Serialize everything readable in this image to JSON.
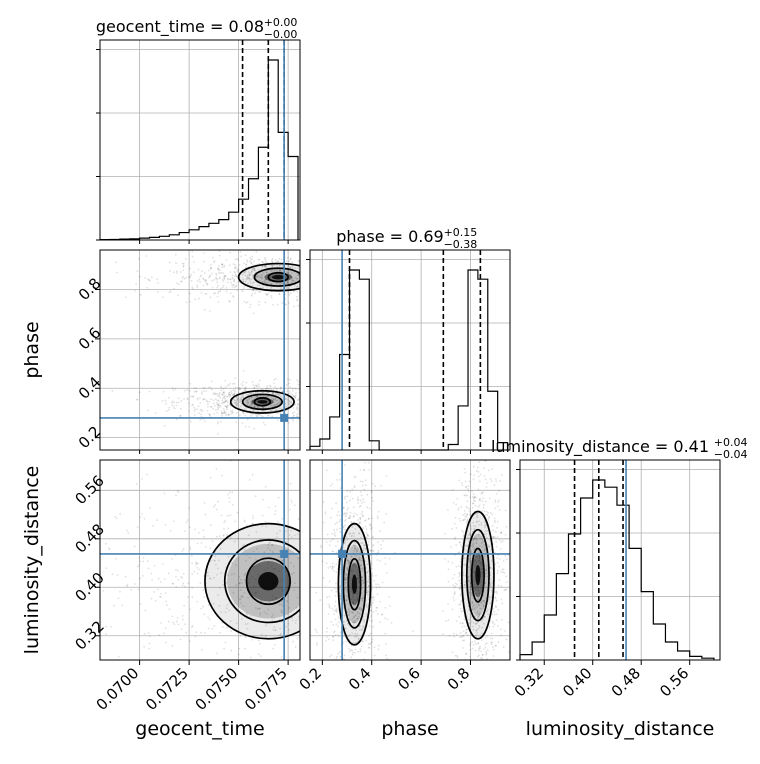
{
  "chart_data": {
    "type": "corner",
    "parameters": [
      "geocent_time",
      "phase",
      "luminosity_distance"
    ],
    "truth": {
      "geocent_time": 0.0773,
      "phase": 0.28,
      "luminosity_distance": 0.455
    },
    "titles": [
      {
        "param": "geocent_time",
        "lhs": "geocent_time = 0.08",
        "sup": "+0.00",
        "sub": "−0.00"
      },
      {
        "param": "phase",
        "lhs": "phase = 0.69",
        "sup": "+0.15",
        "sub": "−0.38"
      },
      {
        "param": "luminosity_distance",
        "lhs": "luminosity_distance = 0.41",
        "sup": "+0.04",
        "sub": "−0.04"
      }
    ],
    "ranges": {
      "geocent_time": [
        0.068,
        0.0781
      ],
      "phase": [
        0.15,
        0.96
      ],
      "luminosity_distance": [
        0.28,
        0.61
      ]
    },
    "ticks": {
      "geocent_time": {
        "values": [
          0.07,
          0.0725,
          0.075,
          0.0775
        ],
        "labels": [
          "0.0700",
          "0.0725",
          "0.0750",
          "0.0775"
        ]
      },
      "phase": {
        "values": [
          0.2,
          0.4,
          0.6,
          0.8
        ],
        "labels": [
          "0.2",
          "0.4",
          "0.6",
          "0.8"
        ]
      },
      "luminosity_distance": {
        "values": [
          0.32,
          0.4,
          0.48,
          0.56
        ],
        "labels": [
          "0.32",
          "0.40",
          "0.48",
          "0.56"
        ]
      }
    },
    "quantiles": {
      "geocent_time": [
        0.0752,
        0.0765,
        0.0773
      ],
      "phase": [
        0.31,
        0.69,
        0.84
      ],
      "luminosity_distance": [
        0.37,
        0.41,
        0.45
      ]
    },
    "histograms": {
      "geocent_time": {
        "edges": [
          0.068,
          0.0685,
          0.069,
          0.0695,
          0.07,
          0.0705,
          0.071,
          0.0715,
          0.072,
          0.0725,
          0.073,
          0.0735,
          0.074,
          0.0745,
          0.075,
          0.0755,
          0.076,
          0.0765,
          0.077,
          0.0775,
          0.078
        ],
        "counts": [
          0.002,
          0.003,
          0.005,
          0.006,
          0.01,
          0.014,
          0.02,
          0.028,
          0.04,
          0.055,
          0.072,
          0.09,
          0.11,
          0.15,
          0.22,
          0.33,
          0.5,
          0.97,
          0.58,
          0.45
        ]
      },
      "phase": {
        "edges": [
          0.15,
          0.19,
          0.23,
          0.27,
          0.31,
          0.35,
          0.39,
          0.43,
          0.47,
          0.51,
          0.55,
          0.59,
          0.63,
          0.67,
          0.71,
          0.75,
          0.79,
          0.83,
          0.87,
          0.91,
          0.95
        ],
        "counts": [
          0.02,
          0.06,
          0.18,
          0.52,
          0.98,
          0.93,
          0.05,
          0,
          0,
          0,
          0,
          0,
          0,
          0,
          0.03,
          0.24,
          0.98,
          0.93,
          0.32,
          0.04
        ]
      },
      "luminosity_distance": {
        "edges": [
          0.28,
          0.3,
          0.32,
          0.34,
          0.36,
          0.38,
          0.4,
          0.42,
          0.44,
          0.46,
          0.48,
          0.5,
          0.52,
          0.54,
          0.56,
          0.58,
          0.6
        ],
        "counts": [
          0.03,
          0.1,
          0.25,
          0.48,
          0.7,
          0.9,
          1.0,
          0.96,
          0.86,
          0.62,
          0.38,
          0.2,
          0.1,
          0.05,
          0.02,
          0.01
        ]
      }
    },
    "contours": [
      {
        "x": "geocent_time",
        "y": "phase",
        "centers": [
          {
            "x": 0.0762,
            "y": 0.345,
            "levels": [
              [
                0.0016,
                0.045
              ],
              [
                0.001,
                0.03
              ],
              [
                0.0004,
                0.016
              ]
            ]
          },
          {
            "x": 0.077,
            "y": 0.85,
            "levels": [
              [
                0.002,
                0.055
              ],
              [
                0.0012,
                0.036
              ],
              [
                0.0005,
                0.018
              ]
            ]
          }
        ]
      },
      {
        "x": "geocent_time",
        "y": "luminosity_distance",
        "centers": [
          {
            "x": 0.0765,
            "y": 0.41,
            "levels": [
              [
                0.0032,
                0.095
              ],
              [
                0.0022,
                0.068
              ],
              [
                0.0011,
                0.038
              ]
            ]
          }
        ]
      },
      {
        "x": "phase",
        "y": "luminosity_distance",
        "centers": [
          {
            "x": 0.33,
            "y": 0.405,
            "levels": [
              [
                0.065,
                0.1
              ],
              [
                0.045,
                0.072
              ],
              [
                0.025,
                0.042
              ]
            ]
          },
          {
            "x": 0.83,
            "y": 0.42,
            "levels": [
              [
                0.065,
                0.105
              ],
              [
                0.045,
                0.075
              ],
              [
                0.025,
                0.044
              ]
            ]
          }
        ]
      }
    ],
    "grid": true
  }
}
